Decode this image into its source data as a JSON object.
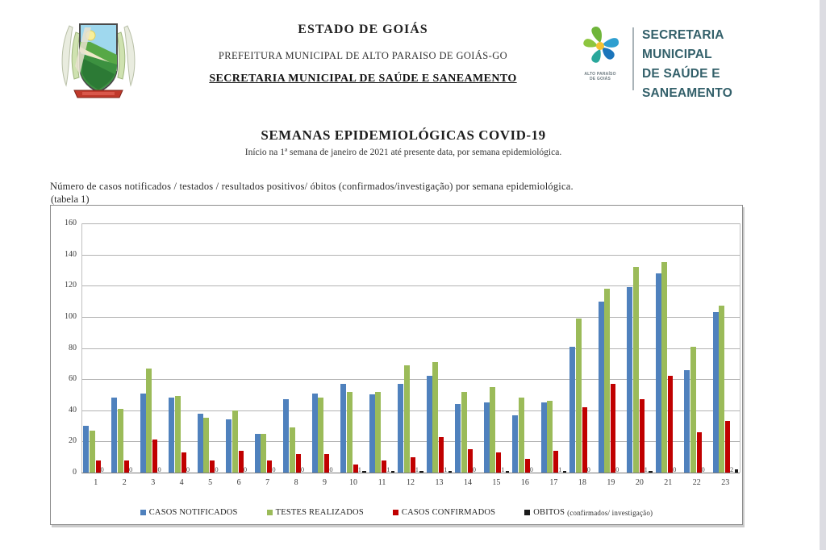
{
  "page": {
    "header": {
      "state": "ESTADO DE GOIÁS",
      "municipality": "PREFEITURA MUNICIPAL DE ALTO PARAISO DE GOIÁS-GO",
      "department": "SECRETARIA MUNICIPAL DE SAÚDE E SANEAMENTO",
      "logo_right": {
        "caption_line1": "ALTO PARAÍSO",
        "caption_line2": "DE GOIÁS",
        "text_line1": "SECRETARIA MUNICIPAL",
        "text_line2": "DE SAÚDE E",
        "text_line3": "SANEAMENTO"
      }
    },
    "title": "SEMANAS EPIDEMIOLÓGICAS COVID-19",
    "subtitle": "Início na 1ª semana de janeiro de 2021 até presente data, por semana epidemiológica.",
    "description_line1": "Número de casos notificados / testados / resultados positivos/ óbitos (confirmados/investigação) por semana epidemiológica.",
    "description_line2": "(tabela 1)"
  },
  "chart_data": {
    "type": "bar",
    "categories": [
      "1",
      "2",
      "3",
      "4",
      "5",
      "6",
      "7",
      "8",
      "9",
      "10",
      "11",
      "12",
      "13",
      "14",
      "15",
      "16",
      "17",
      "18",
      "19",
      "20",
      "21",
      "22",
      "23"
    ],
    "series": [
      {
        "name": "CASOS NOTIFICADOS",
        "color": "#4f81bd",
        "values": [
          30,
          48,
          51,
          48,
          38,
          34,
          25,
          47,
          51,
          57,
          50,
          57,
          62,
          44,
          45,
          37,
          45,
          81,
          110,
          119,
          128,
          66,
          103
        ]
      },
      {
        "name": "TESTES REALIZADOS",
        "color": "#9bbb59",
        "values": [
          27,
          41,
          67,
          49,
          35,
          40,
          25,
          29,
          48,
          52,
          52,
          69,
          71,
          52,
          55,
          48,
          46,
          99,
          118,
          132,
          135,
          81,
          107
        ]
      },
      {
        "name": "CASOS CONFIRMADOS",
        "color": "#c00000",
        "values": [
          8,
          8,
          21,
          13,
          8,
          14,
          8,
          12,
          12,
          5,
          8,
          10,
          23,
          15,
          13,
          9,
          14,
          42,
          57,
          47,
          62,
          26,
          33
        ]
      },
      {
        "name": "OBITOS",
        "legend_suffix": "(confirmados/ investigação)",
        "color": "#1a1a1a",
        "values": [
          0,
          0,
          0,
          0,
          0,
          0,
          0,
          0,
          0,
          1,
          1,
          1,
          1,
          0,
          1,
          0,
          1,
          0,
          0,
          1,
          0,
          0,
          2
        ],
        "data_labels": true
      }
    ],
    "title": "",
    "xlabel": "",
    "ylabel": "",
    "ylim": [
      0,
      160
    ],
    "yticks": [
      0,
      20,
      40,
      60,
      80,
      100,
      120,
      140,
      160
    ],
    "grid": true,
    "legend_position": "bottom"
  }
}
